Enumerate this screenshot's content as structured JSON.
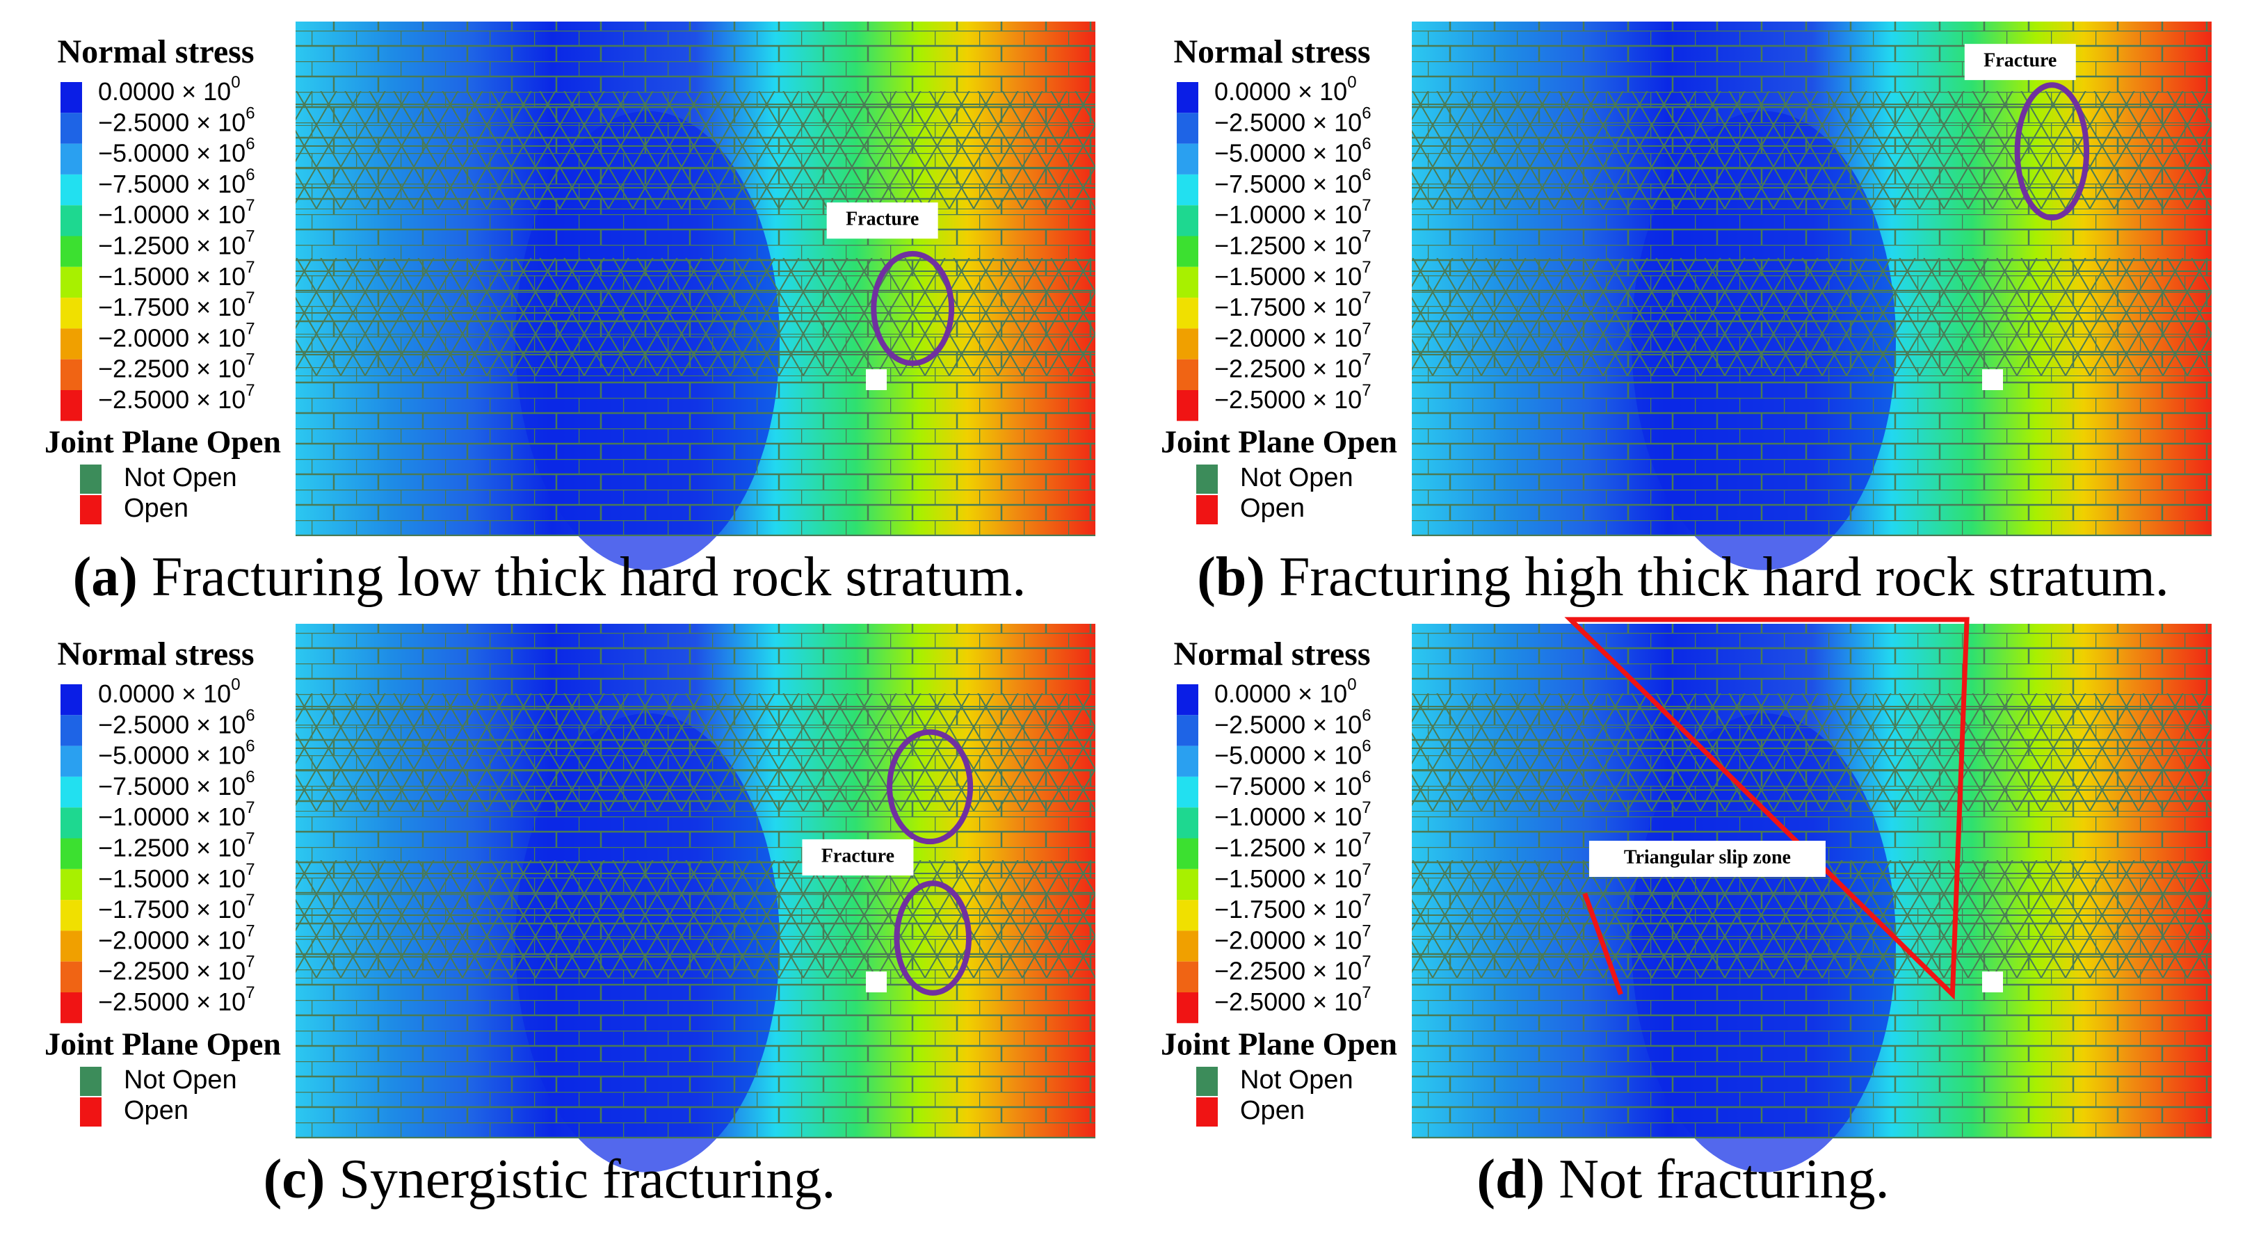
{
  "legend_colors": [
    "#0a1ee6",
    "#1e64e6",
    "#2aa0f0",
    "#22e0f0",
    "#1ed890",
    "#3ce030",
    "#a8f000",
    "#f0e000",
    "#f0a000",
    "#f06414",
    "#f01414"
  ],
  "joint_colors": [
    "#3c8c5a",
    "#f01414"
  ],
  "panels": [
    {
      "legend_title": "Normal stress",
      "stress_labels": [
        {
          "mantissa": "0.0000 × 10",
          "exponent": "0"
        },
        {
          "mantissa": "−2.5000 × 10",
          "exponent": "6"
        },
        {
          "mantissa": "−5.0000 × 10",
          "exponent": "6"
        },
        {
          "mantissa": "−7.5000 × 10",
          "exponent": "6"
        },
        {
          "mantissa": "−1.0000 × 10",
          "exponent": "7"
        },
        {
          "mantissa": "−1.2500 × 10",
          "exponent": "7"
        },
        {
          "mantissa": "−1.5000 × 10",
          "exponent": "7"
        },
        {
          "mantissa": "−1.7500 × 10",
          "exponent": "7"
        },
        {
          "mantissa": "−2.0000 × 10",
          "exponent": "7"
        },
        {
          "mantissa": "−2.2500 × 10",
          "exponent": "7"
        },
        {
          "mantissa": "−2.5000 × 10",
          "exponent": "7"
        }
      ],
      "joint_title": "Joint Plane Open",
      "joint_labels": [
        "Not Open",
        "Open"
      ],
      "annotation": "Fracture",
      "caption_label": "(a)",
      "caption": "Fracturing low thick hard rock stratum."
    },
    {
      "legend_title": "Normal stress",
      "stress_labels": [
        {
          "mantissa": "0.0000 × 10",
          "exponent": "0"
        },
        {
          "mantissa": "−2.5000 × 10",
          "exponent": "6"
        },
        {
          "mantissa": "−5.0000 × 10",
          "exponent": "6"
        },
        {
          "mantissa": "−7.5000 × 10",
          "exponent": "6"
        },
        {
          "mantissa": "−1.0000 × 10",
          "exponent": "7"
        },
        {
          "mantissa": "−1.2500 × 10",
          "exponent": "7"
        },
        {
          "mantissa": "−1.5000 × 10",
          "exponent": "7"
        },
        {
          "mantissa": "−1.7500 × 10",
          "exponent": "7"
        },
        {
          "mantissa": "−2.0000 × 10",
          "exponent": "7"
        },
        {
          "mantissa": "−2.2500 × 10",
          "exponent": "7"
        },
        {
          "mantissa": "−2.5000 × 10",
          "exponent": "7"
        }
      ],
      "joint_title": "Joint Plane Open",
      "joint_labels": [
        "Not Open",
        "Open"
      ],
      "annotation": "Fracture",
      "caption_label": "(b)",
      "caption": "Fracturing high thick hard rock stratum."
    },
    {
      "legend_title": "Normal stress",
      "stress_labels": [
        {
          "mantissa": "0.0000 × 10",
          "exponent": "0"
        },
        {
          "mantissa": "−2.5000 × 10",
          "exponent": "6"
        },
        {
          "mantissa": "−5.0000 × 10",
          "exponent": "6"
        },
        {
          "mantissa": "−7.5000 × 10",
          "exponent": "6"
        },
        {
          "mantissa": "−1.0000 × 10",
          "exponent": "7"
        },
        {
          "mantissa": "−1.2500 × 10",
          "exponent": "7"
        },
        {
          "mantissa": "−1.5000 × 10",
          "exponent": "7"
        },
        {
          "mantissa": "−1.7500 × 10",
          "exponent": "7"
        },
        {
          "mantissa": "−2.0000 × 10",
          "exponent": "7"
        },
        {
          "mantissa": "−2.2500 × 10",
          "exponent": "7"
        },
        {
          "mantissa": "−2.5000 × 10",
          "exponent": "7"
        }
      ],
      "joint_title": "Joint Plane Open",
      "joint_labels": [
        "Not Open",
        "Open"
      ],
      "annotation": "Fracture",
      "caption_label": "(c)",
      "caption": "Synergistic fracturing."
    },
    {
      "legend_title": "Normal stress",
      "stress_labels": [
        {
          "mantissa": "0.0000 × 10",
          "exponent": "0"
        },
        {
          "mantissa": "−2.5000 × 10",
          "exponent": "6"
        },
        {
          "mantissa": "−5.0000 × 10",
          "exponent": "6"
        },
        {
          "mantissa": "−7.5000 × 10",
          "exponent": "6"
        },
        {
          "mantissa": "−1.0000 × 10",
          "exponent": "7"
        },
        {
          "mantissa": "−1.2500 × 10",
          "exponent": "7"
        },
        {
          "mantissa": "−1.5000 × 10",
          "exponent": "7"
        },
        {
          "mantissa": "−1.7500 × 10",
          "exponent": "7"
        },
        {
          "mantissa": "−2.0000 × 10",
          "exponent": "7"
        },
        {
          "mantissa": "−2.2500 × 10",
          "exponent": "7"
        },
        {
          "mantissa": "−2.5000 × 10",
          "exponent": "7"
        }
      ],
      "joint_title": "Joint Plane Open",
      "joint_labels": [
        "Not Open",
        "Open"
      ],
      "annotation": "Triangular slip zone",
      "caption_label": "(d)",
      "caption": "Not fracturing."
    }
  ]
}
